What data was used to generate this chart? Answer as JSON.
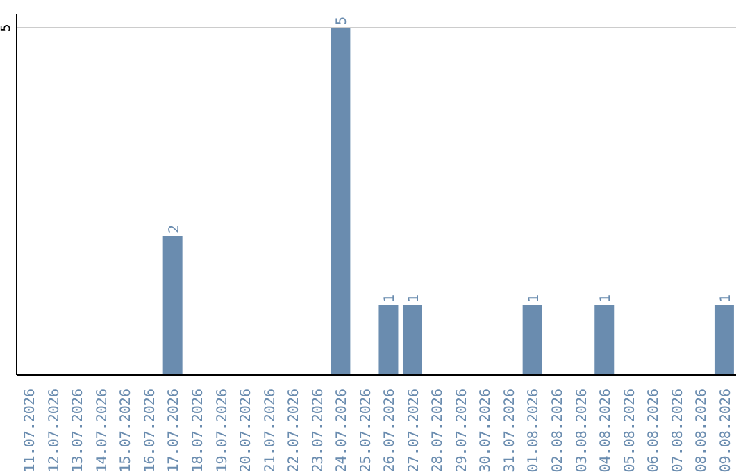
{
  "chart_data": {
    "type": "bar",
    "categories": [
      "11.07.2026",
      "12.07.2026",
      "13.07.2026",
      "14.07.2026",
      "15.07.2026",
      "16.07.2026",
      "17.07.2026",
      "18.07.2026",
      "19.07.2026",
      "20.07.2026",
      "21.07.2026",
      "22.07.2026",
      "23.07.2026",
      "24.07.2026",
      "25.07.2026",
      "26.07.2026",
      "27.07.2026",
      "28.07.2026",
      "29.07.2026",
      "30.07.2026",
      "31.07.2026",
      "01.08.2026",
      "02.08.2026",
      "03.08.2026",
      "04.08.2026",
      "05.08.2026",
      "06.08.2026",
      "07.08.2026",
      "08.08.2026",
      "09.08.2026"
    ],
    "values": [
      0,
      0,
      0,
      0,
      0,
      0,
      2,
      0,
      0,
      0,
      0,
      0,
      0,
      5,
      0,
      1,
      1,
      0,
      0,
      0,
      0,
      1,
      0,
      0,
      1,
      0,
      0,
      0,
      0,
      1
    ],
    "value_labels": [
      null,
      null,
      null,
      null,
      null,
      null,
      "2",
      null,
      null,
      null,
      null,
      null,
      null,
      "5",
      null,
      "1",
      "1",
      null,
      null,
      null,
      null,
      "1",
      null,
      null,
      "1",
      null,
      null,
      null,
      null,
      "1"
    ],
    "color": "#6a8caf",
    "ylim": [
      0,
      5.2
    ],
    "yticks": [
      5
    ],
    "grid": "y",
    "legend": false
  }
}
